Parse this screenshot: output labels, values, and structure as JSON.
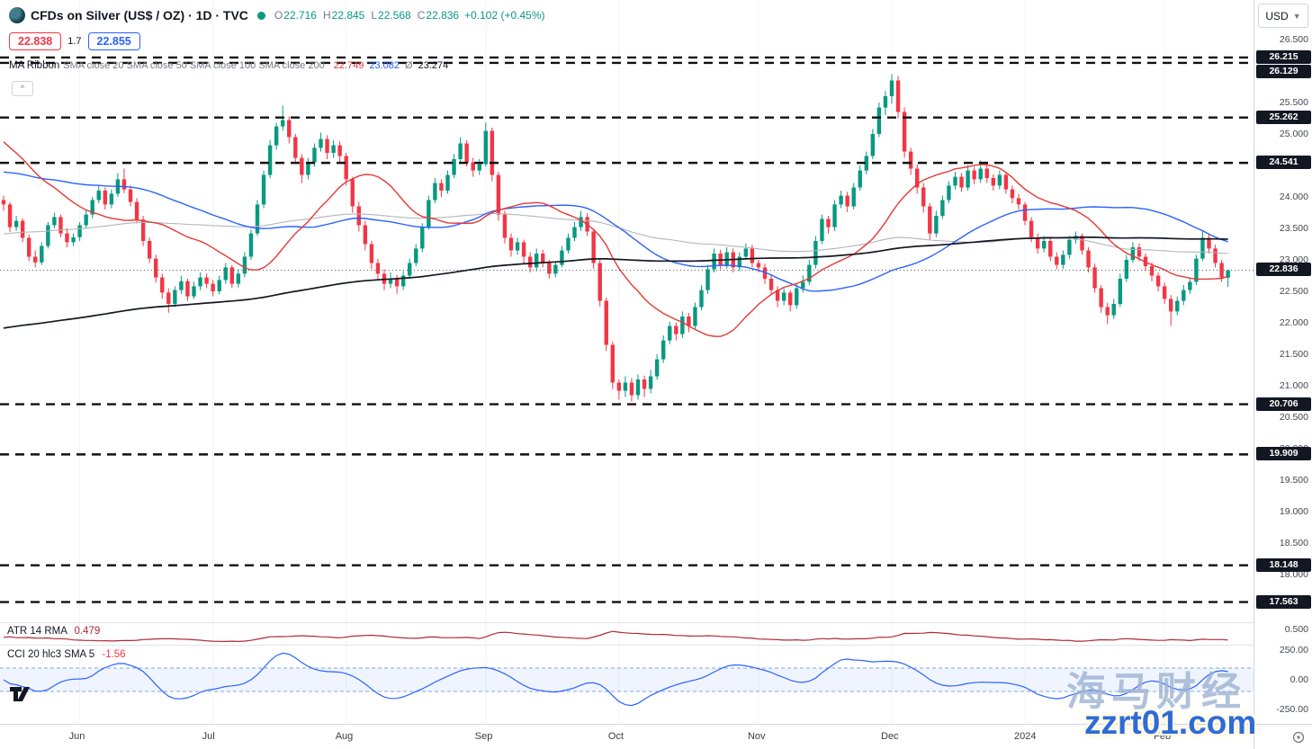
{
  "colors": {
    "up": "#089981",
    "down": "#f23645",
    "sma20": "#e53935",
    "sma50": "#2962ff",
    "sma100": "#b2b5be",
    "sma200": "#131722",
    "atr": "#b22833",
    "cci": "#2962ff",
    "level": "#111111",
    "accent_sell": "#f23645",
    "accent_buy": "#2962ff"
  },
  "header": {
    "title": "CFDs on Silver (US$ / OZ) · 1D · TVC",
    "ohlc": [
      [
        "O",
        "22.716"
      ],
      [
        "H",
        "22.845"
      ],
      [
        "L",
        "22.568"
      ],
      [
        "C",
        "22.836"
      ]
    ],
    "change": "+0.102 (+0.45%)",
    "sell": "22.838",
    "spread": "1.7",
    "buy": "22.855",
    "ribbon_title": "MA Ribbon",
    "ribbon_params": "SMA close 20 SMA close 50 SMA close 100 SMA close 200",
    "ribbon_values": [
      {
        "text": "22.749",
        "color": "#e53935"
      },
      {
        "text": "23.082",
        "color": "#2962ff"
      },
      {
        "text": "Ø",
        "color": "#787b86"
      },
      {
        "text": "23.274",
        "color": "#131722"
      }
    ],
    "collapse_label": "^"
  },
  "indicator_panes": {
    "atr": {
      "label": "ATR 14 RMA",
      "value": "0.479"
    },
    "cci": {
      "label": "CCI 20 hlc3 SMA 5",
      "value": "-1.56"
    }
  },
  "price_axis": {
    "currency": "USD",
    "ticks": [
      26.5,
      26.0,
      25.5,
      25.0,
      24.0,
      23.5,
      23.0,
      22.5,
      22.0,
      21.5,
      21.0,
      20.5,
      20.0,
      19.5,
      19.0,
      18.5,
      18.0
    ],
    "pane_labels": [
      {
        "pane": "atr",
        "value": 0.5,
        "text": "0.500"
      },
      {
        "pane": "cci",
        "value": 250,
        "text": "250.00"
      },
      {
        "pane": "cci",
        "value": 0,
        "text": "0.00"
      },
      {
        "pane": "cci",
        "value": -250,
        "text": "-250.00"
      }
    ]
  },
  "watermark": {
    "line1": "海马财经",
    "line2": "zzrt01.com"
  },
  "chart_data": {
    "type": "candlestick",
    "title": "CFDs on Silver (US$ / OZ)",
    "timeframe": "1D",
    "exchange": "TVC",
    "ylim_main": [
      17.2,
      27.1
    ],
    "current_price": 22.836,
    "key_levels": [
      26.215,
      26.129,
      25.262,
      24.541,
      20.706,
      19.909,
      18.148,
      17.563
    ],
    "months": [
      {
        "label": "Jun",
        "index": 12
      },
      {
        "label": "Jul",
        "index": 33
      },
      {
        "label": "Aug",
        "index": 54
      },
      {
        "label": "Sep",
        "index": 76
      },
      {
        "label": "Oct",
        "index": 97
      },
      {
        "label": "Nov",
        "index": 119
      },
      {
        "label": "Dec",
        "index": 140
      },
      {
        "label": "2024",
        "index": 161
      },
      {
        "label": "Feb",
        "index": 183
      }
    ],
    "overlays": [
      {
        "name": "SMA 20",
        "window": 20,
        "last": 22.749
      },
      {
        "name": "SMA 50",
        "window": 50,
        "last": 23.082
      },
      {
        "name": "SMA 100",
        "window": 100
      },
      {
        "name": "SMA 200",
        "window": 200,
        "last": 23.274
      }
    ],
    "indicators": {
      "atr": {
        "label": "ATR 14 RMA",
        "value": 0.479
      },
      "cci": {
        "label": "CCI 20 hlc3 SMA 5",
        "value": -1.56,
        "band": [
          -100,
          100
        ],
        "range": [
          -250,
          250
        ]
      }
    },
    "candles": [
      [
        23.95,
        24.02,
        23.78,
        23.88
      ],
      [
        23.88,
        23.92,
        23.44,
        23.52
      ],
      [
        23.52,
        23.7,
        23.46,
        23.62
      ],
      [
        23.62,
        23.66,
        23.28,
        23.35
      ],
      [
        23.35,
        23.4,
        22.98,
        23.05
      ],
      [
        23.05,
        23.15,
        22.88,
        22.96
      ],
      [
        22.96,
        23.28,
        22.92,
        23.22
      ],
      [
        23.22,
        23.6,
        23.18,
        23.55
      ],
      [
        23.55,
        23.75,
        23.5,
        23.68
      ],
      [
        23.68,
        23.72,
        23.36,
        23.42
      ],
      [
        23.42,
        23.5,
        23.2,
        23.28
      ],
      [
        23.28,
        23.42,
        23.22,
        23.36
      ],
      [
        23.36,
        23.6,
        23.3,
        23.55
      ],
      [
        23.55,
        23.8,
        23.5,
        23.72
      ],
      [
        23.72,
        24.0,
        23.66,
        23.95
      ],
      [
        23.95,
        24.18,
        23.9,
        24.1
      ],
      [
        24.1,
        24.15,
        23.8,
        23.88
      ],
      [
        23.88,
        24.12,
        23.82,
        24.05
      ],
      [
        24.05,
        24.38,
        24.0,
        24.28
      ],
      [
        24.28,
        24.45,
        24.06,
        24.12
      ],
      [
        24.12,
        24.18,
        23.85,
        23.92
      ],
      [
        23.92,
        23.98,
        23.58,
        23.64
      ],
      [
        23.64,
        23.7,
        23.22,
        23.3
      ],
      [
        23.3,
        23.36,
        22.95,
        23.02
      ],
      [
        23.02,
        23.08,
        22.64,
        22.72
      ],
      [
        22.72,
        22.78,
        22.38,
        22.48
      ],
      [
        22.48,
        22.55,
        22.16,
        22.3
      ],
      [
        22.3,
        22.58,
        22.25,
        22.52
      ],
      [
        22.52,
        22.75,
        22.46,
        22.66
      ],
      [
        22.66,
        22.7,
        22.35,
        22.42
      ],
      [
        22.42,
        22.65,
        22.38,
        22.58
      ],
      [
        22.58,
        22.8,
        22.52,
        22.72
      ],
      [
        22.72,
        22.78,
        22.55,
        22.62
      ],
      [
        22.62,
        22.68,
        22.42,
        22.5
      ],
      [
        22.5,
        22.75,
        22.45,
        22.68
      ],
      [
        22.68,
        22.95,
        22.62,
        22.88
      ],
      [
        22.88,
        22.92,
        22.55,
        22.62
      ],
      [
        22.62,
        22.85,
        22.56,
        22.78
      ],
      [
        22.78,
        23.12,
        22.72,
        23.05
      ],
      [
        23.05,
        23.48,
        23.0,
        23.42
      ],
      [
        23.42,
        23.95,
        23.38,
        23.88
      ],
      [
        23.88,
        24.42,
        23.82,
        24.35
      ],
      [
        24.35,
        24.9,
        24.3,
        24.82
      ],
      [
        24.82,
        25.18,
        24.75,
        25.12
      ],
      [
        25.12,
        25.45,
        25.05,
        25.22
      ],
      [
        25.22,
        25.28,
        24.85,
        24.95
      ],
      [
        24.95,
        25.0,
        24.52,
        24.62
      ],
      [
        24.62,
        24.68,
        24.22,
        24.35
      ],
      [
        24.35,
        24.62,
        24.28,
        24.55
      ],
      [
        24.55,
        24.85,
        24.48,
        24.78
      ],
      [
        24.78,
        25.02,
        24.72,
        24.92
      ],
      [
        24.92,
        24.98,
        24.6,
        24.7
      ],
      [
        24.7,
        24.9,
        24.62,
        24.82
      ],
      [
        24.82,
        24.88,
        24.55,
        24.65
      ],
      [
        24.65,
        24.7,
        24.18,
        24.28
      ],
      [
        24.28,
        24.32,
        23.75,
        23.85
      ],
      [
        23.85,
        23.92,
        23.45,
        23.55
      ],
      [
        23.55,
        23.62,
        23.15,
        23.25
      ],
      [
        23.25,
        23.3,
        22.85,
        22.95
      ],
      [
        22.95,
        23.02,
        22.68,
        22.78
      ],
      [
        22.78,
        22.85,
        22.52,
        22.62
      ],
      [
        22.62,
        22.8,
        22.55,
        22.7
      ],
      [
        22.7,
        22.76,
        22.46,
        22.58
      ],
      [
        22.58,
        22.82,
        22.52,
        22.75
      ],
      [
        22.75,
        23.02,
        22.7,
        22.95
      ],
      [
        22.95,
        23.25,
        22.9,
        23.18
      ],
      [
        23.18,
        23.58,
        23.12,
        23.52
      ],
      [
        23.52,
        24.02,
        23.48,
        23.95
      ],
      [
        23.95,
        24.3,
        23.9,
        24.22
      ],
      [
        24.22,
        24.28,
        24.0,
        24.1
      ],
      [
        24.1,
        24.42,
        24.05,
        24.35
      ],
      [
        24.35,
        24.68,
        24.3,
        24.6
      ],
      [
        24.6,
        24.95,
        24.55,
        24.85
      ],
      [
        24.85,
        24.9,
        24.48,
        24.55
      ],
      [
        24.55,
        24.62,
        24.32,
        24.42
      ],
      [
        24.42,
        24.6,
        24.35,
        24.52
      ],
      [
        24.52,
        25.18,
        24.48,
        25.05
      ],
      [
        25.05,
        25.1,
        24.25,
        24.35
      ],
      [
        24.35,
        24.4,
        23.62,
        23.72
      ],
      [
        23.72,
        23.78,
        23.26,
        23.35
      ],
      [
        23.35,
        23.42,
        23.05,
        23.15
      ],
      [
        23.15,
        23.35,
        23.08,
        23.28
      ],
      [
        23.28,
        23.32,
        22.95,
        23.05
      ],
      [
        23.05,
        23.12,
        22.8,
        22.88
      ],
      [
        22.88,
        23.18,
        22.82,
        23.1
      ],
      [
        23.1,
        23.16,
        22.88,
        22.95
      ],
      [
        22.95,
        23.0,
        22.7,
        22.78
      ],
      [
        22.78,
        22.98,
        22.72,
        22.92
      ],
      [
        22.92,
        23.22,
        22.88,
        23.15
      ],
      [
        23.15,
        23.42,
        23.1,
        23.35
      ],
      [
        23.35,
        23.6,
        23.3,
        23.52
      ],
      [
        23.52,
        23.78,
        23.46,
        23.68
      ],
      [
        23.68,
        23.74,
        23.38,
        23.45
      ],
      [
        23.45,
        23.5,
        22.86,
        22.95
      ],
      [
        22.95,
        23.0,
        22.26,
        22.35
      ],
      [
        22.35,
        22.4,
        21.55,
        21.65
      ],
      [
        21.65,
        21.7,
        20.95,
        21.05
      ],
      [
        21.05,
        21.1,
        20.78,
        20.92
      ],
      [
        20.92,
        21.15,
        20.82,
        21.05
      ],
      [
        21.05,
        21.12,
        20.75,
        20.85
      ],
      [
        20.85,
        21.18,
        20.78,
        21.1
      ],
      [
        21.1,
        21.16,
        20.82,
        20.95
      ],
      [
        20.95,
        21.25,
        20.88,
        21.15
      ],
      [
        21.15,
        21.5,
        21.1,
        21.42
      ],
      [
        21.42,
        21.8,
        21.36,
        21.72
      ],
      [
        21.72,
        22.02,
        21.66,
        21.95
      ],
      [
        21.95,
        22.0,
        21.72,
        21.82
      ],
      [
        21.82,
        22.18,
        21.76,
        22.1
      ],
      [
        22.1,
        22.16,
        21.85,
        21.95
      ],
      [
        21.95,
        22.32,
        21.9,
        22.25
      ],
      [
        22.25,
        22.6,
        22.2,
        22.52
      ],
      [
        22.52,
        22.92,
        22.46,
        22.85
      ],
      [
        22.85,
        23.18,
        22.8,
        23.1
      ],
      [
        23.1,
        23.16,
        22.85,
        22.92
      ],
      [
        22.92,
        23.2,
        22.86,
        23.12
      ],
      [
        23.12,
        23.18,
        22.8,
        22.88
      ],
      [
        22.88,
        23.12,
        22.82,
        23.05
      ],
      [
        23.05,
        23.26,
        23.0,
        23.18
      ],
      [
        23.18,
        23.24,
        22.88,
        22.95
      ],
      [
        22.95,
        23.0,
        22.8,
        22.88
      ],
      [
        22.88,
        22.94,
        22.62,
        22.7
      ],
      [
        22.7,
        22.76,
        22.44,
        22.52
      ],
      [
        22.52,
        22.58,
        22.25,
        22.35
      ],
      [
        22.35,
        22.55,
        22.28,
        22.48
      ],
      [
        22.48,
        22.52,
        22.18,
        22.28
      ],
      [
        22.28,
        22.62,
        22.22,
        22.55
      ],
      [
        22.55,
        22.75,
        22.48,
        22.65
      ],
      [
        22.65,
        23.0,
        22.6,
        22.92
      ],
      [
        22.92,
        23.38,
        22.86,
        23.3
      ],
      [
        23.3,
        23.72,
        23.25,
        23.65
      ],
      [
        23.65,
        23.7,
        23.42,
        23.52
      ],
      [
        23.52,
        23.95,
        23.46,
        23.88
      ],
      [
        23.88,
        24.1,
        23.82,
        24.02
      ],
      [
        24.02,
        24.08,
        23.76,
        23.85
      ],
      [
        23.85,
        24.22,
        23.8,
        24.15
      ],
      [
        24.15,
        24.5,
        24.1,
        24.42
      ],
      [
        24.42,
        24.72,
        24.36,
        24.65
      ],
      [
        24.65,
        25.08,
        24.6,
        25.0
      ],
      [
        25.0,
        25.5,
        24.95,
        25.42
      ],
      [
        25.42,
        25.68,
        25.3,
        25.6
      ],
      [
        25.6,
        25.95,
        25.48,
        25.85
      ],
      [
        25.85,
        25.92,
        25.25,
        25.35
      ],
      [
        25.35,
        25.42,
        24.62,
        24.72
      ],
      [
        24.72,
        24.78,
        24.35,
        24.45
      ],
      [
        24.45,
        24.52,
        24.05,
        24.15
      ],
      [
        24.15,
        24.22,
        23.75,
        23.85
      ],
      [
        23.85,
        23.9,
        23.32,
        23.42
      ],
      [
        23.42,
        23.78,
        23.36,
        23.7
      ],
      [
        23.7,
        24.02,
        23.65,
        23.95
      ],
      [
        23.95,
        24.25,
        23.9,
        24.18
      ],
      [
        24.18,
        24.4,
        24.12,
        24.32
      ],
      [
        24.32,
        24.38,
        24.08,
        24.15
      ],
      [
        24.15,
        24.5,
        24.1,
        24.42
      ],
      [
        24.42,
        24.48,
        24.2,
        24.28
      ],
      [
        24.28,
        24.58,
        24.22,
        24.45
      ],
      [
        24.45,
        24.52,
        24.22,
        24.3
      ],
      [
        24.3,
        24.36,
        24.1,
        24.18
      ],
      [
        24.18,
        24.42,
        24.12,
        24.35
      ],
      [
        24.35,
        24.4,
        24.05,
        24.12
      ],
      [
        24.12,
        24.18,
        23.9,
        23.98
      ],
      [
        23.98,
        24.05,
        23.8,
        23.88
      ],
      [
        23.88,
        23.92,
        23.55,
        23.62
      ],
      [
        23.62,
        23.68,
        23.28,
        23.35
      ],
      [
        23.35,
        23.42,
        23.1,
        23.18
      ],
      [
        23.18,
        23.38,
        23.12,
        23.3
      ],
      [
        23.3,
        23.35,
        22.98,
        23.05
      ],
      [
        23.05,
        23.12,
        22.85,
        22.92
      ],
      [
        22.92,
        23.15,
        22.86,
        23.08
      ],
      [
        23.08,
        23.38,
        23.02,
        23.32
      ],
      [
        23.32,
        23.45,
        23.26,
        23.38
      ],
      [
        23.38,
        23.42,
        23.08,
        23.15
      ],
      [
        23.15,
        23.2,
        22.8,
        22.88
      ],
      [
        22.88,
        22.94,
        22.48,
        22.55
      ],
      [
        22.55,
        22.6,
        22.16,
        22.25
      ],
      [
        22.25,
        22.32,
        21.98,
        22.12
      ],
      [
        22.12,
        22.38,
        22.06,
        22.3
      ],
      [
        22.3,
        22.78,
        22.25,
        22.7
      ],
      [
        22.7,
        23.08,
        22.65,
        23.0
      ],
      [
        23.0,
        23.28,
        22.95,
        23.2
      ],
      [
        23.2,
        23.26,
        22.98,
        23.05
      ],
      [
        23.05,
        23.1,
        22.82,
        22.9
      ],
      [
        22.9,
        22.96,
        22.66,
        22.75
      ],
      [
        22.75,
        22.8,
        22.5,
        22.58
      ],
      [
        22.58,
        22.64,
        22.3,
        22.38
      ],
      [
        22.38,
        22.44,
        21.95,
        22.18
      ],
      [
        22.18,
        22.42,
        22.12,
        22.35
      ],
      [
        22.35,
        22.6,
        22.28,
        22.52
      ],
      [
        22.52,
        22.72,
        22.46,
        22.65
      ],
      [
        22.65,
        23.08,
        22.6,
        23.02
      ],
      [
        23.02,
        23.45,
        22.98,
        23.35
      ],
      [
        23.35,
        23.4,
        23.1,
        23.18
      ],
      [
        23.18,
        23.24,
        22.88,
        22.95
      ],
      [
        22.95,
        23.0,
        22.65,
        22.72
      ],
      [
        22.716,
        22.845,
        22.568,
        22.836
      ]
    ]
  }
}
